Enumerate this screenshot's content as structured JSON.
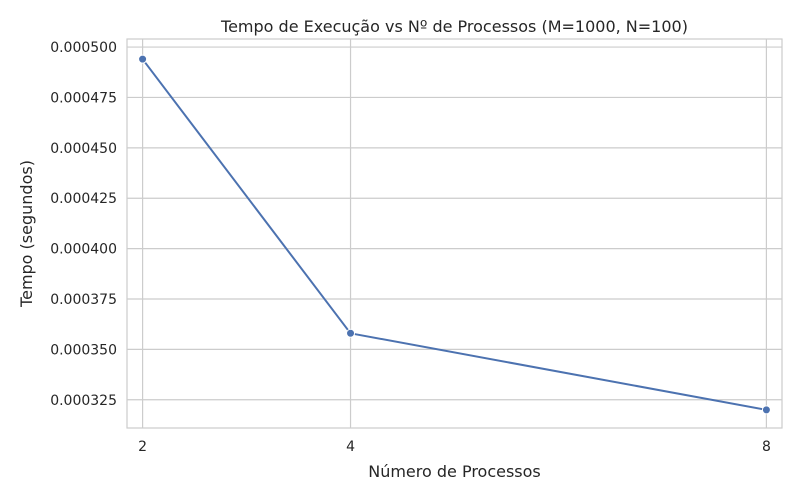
{
  "chart_data": {
    "type": "line",
    "title": "Tempo de Execução vs Nº de Processos (M=1000, N=100)",
    "xlabel": "Número de Processos",
    "ylabel": "Tempo (segundos)",
    "x": [
      2,
      4,
      8
    ],
    "x_tick_labels": [
      "2",
      "4",
      "8"
    ],
    "y_ticks": [
      0.000325,
      0.00035,
      0.000375,
      0.0004,
      0.000425,
      0.00045,
      0.000475,
      0.0005
    ],
    "y_tick_labels": [
      "0.000325",
      "0.000350",
      "0.000375",
      "0.000400",
      "0.000425",
      "0.000450",
      "0.000475",
      "0.000500"
    ],
    "xlim": [
      1.85,
      8.15
    ],
    "ylim": [
      0.000311,
      0.000504
    ],
    "grid": true,
    "series": [
      {
        "values": [
          0.000494,
          0.000358,
          0.00032
        ],
        "color": "#4c72b0",
        "marker": "circle"
      }
    ]
  }
}
